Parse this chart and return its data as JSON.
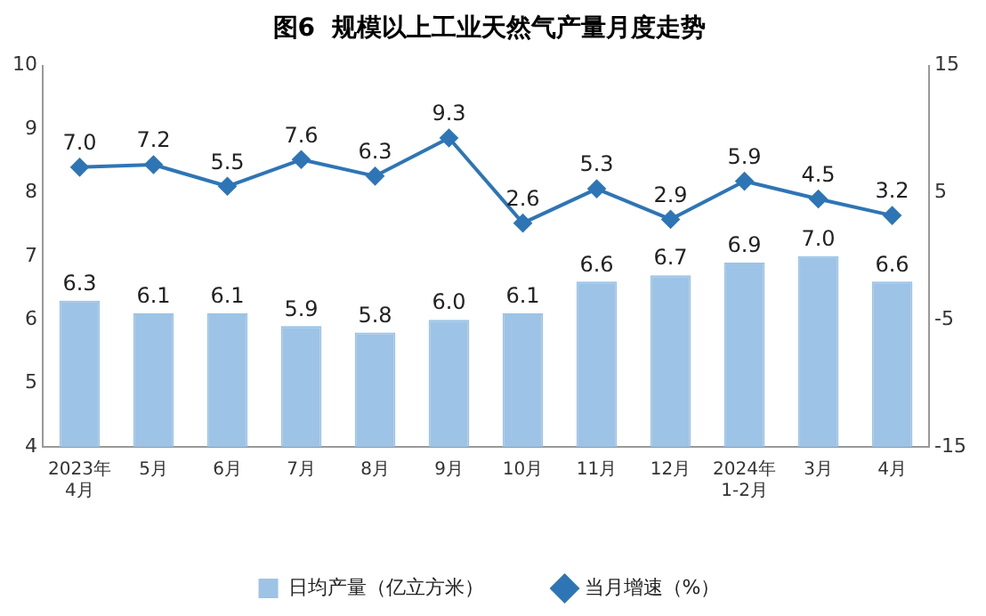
{
  "chart_data": {
    "type": "bar",
    "title": "图6  规模以上工业天然气产量月度走势",
    "categories": [
      "2023年\n4月",
      "5月",
      "6月",
      "7月",
      "8月",
      "9月",
      "10月",
      "11月",
      "12月",
      "2024年\n1-2月",
      "3月",
      "4月"
    ],
    "series": [
      {
        "name": "日均产量（亿立方米）",
        "color": "#9dc3e6",
        "values": [
          6.3,
          6.1,
          6.1,
          5.9,
          5.8,
          6.0,
          6.1,
          6.6,
          6.7,
          6.9,
          7.0,
          6.6
        ],
        "value_labels": [
          "6.3",
          "6.1",
          "6.1",
          "5.9",
          "5.8",
          "6.0",
          "6.1",
          "6.6",
          "6.7",
          "6.9",
          "7.0",
          "6.6"
        ]
      },
      {
        "name": "当月增速（%）",
        "type": "line",
        "axis": "y2",
        "color": "#2e75b6",
        "values": [
          7.0,
          7.2,
          5.5,
          7.6,
          6.3,
          9.3,
          2.6,
          5.3,
          2.9,
          5.9,
          4.5,
          3.2
        ],
        "value_labels": [
          "7.0",
          "7.2",
          "5.5",
          "7.6",
          "6.3",
          "9.3",
          "2.6",
          "5.3",
          "2.9",
          "5.9",
          "4.5",
          "3.2"
        ]
      }
    ],
    "ylim": [
      4,
      10
    ],
    "yticks": [
      4,
      5,
      6,
      7,
      8,
      9,
      10
    ],
    "y2lim": [
      -15,
      15
    ],
    "y2ticks": [
      -15,
      -5,
      5,
      15
    ],
    "grid": false,
    "legend": "bottom",
    "marker": "diamond"
  }
}
